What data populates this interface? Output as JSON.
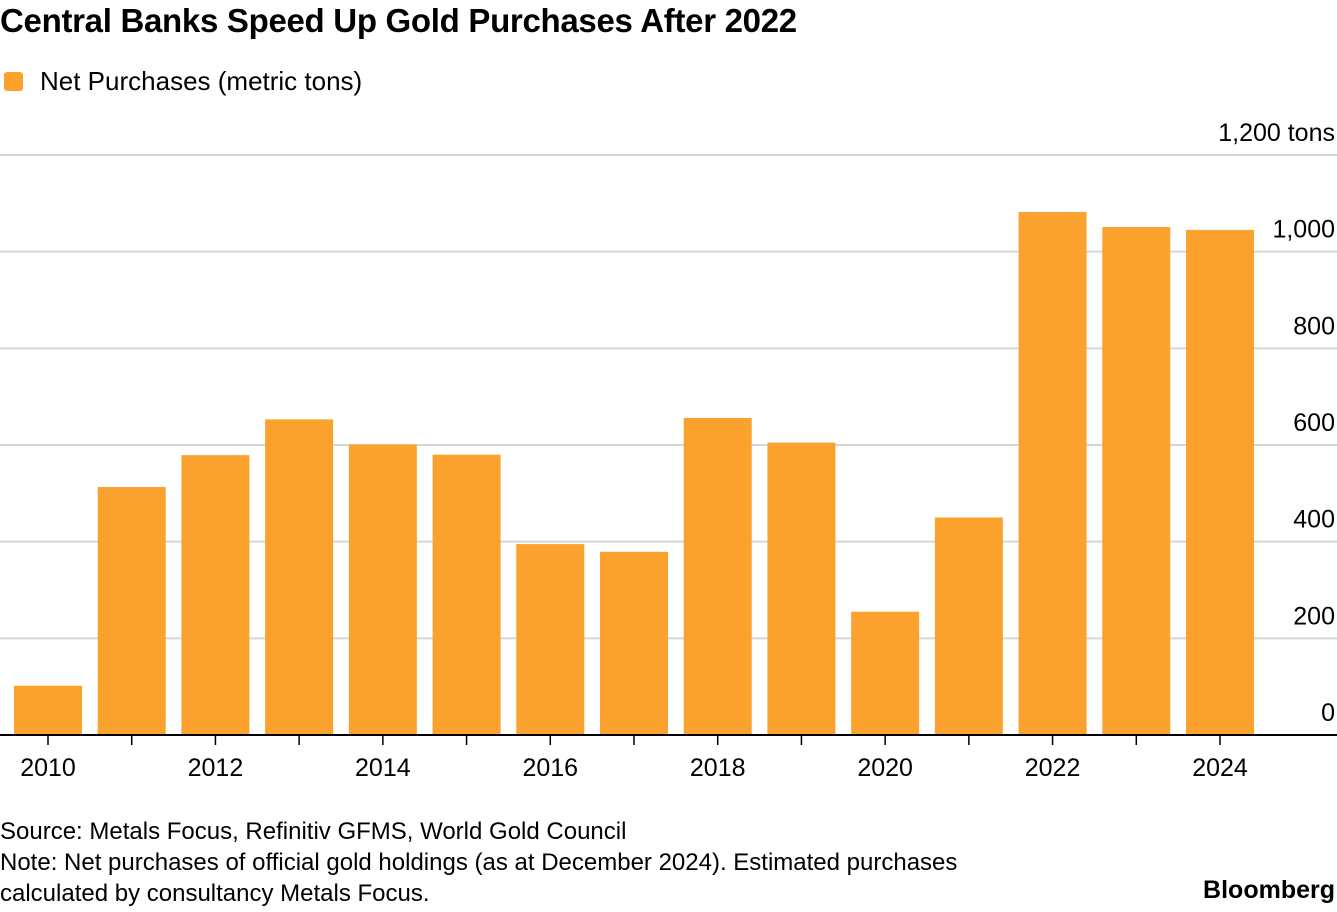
{
  "chart_data": {
    "type": "bar",
    "title": "Central Banks Speed Up Gold Purchases After 2022",
    "legend": [
      "Net Purchases (metric tons)"
    ],
    "categories": [
      "2010",
      "2011",
      "2012",
      "2013",
      "2014",
      "2015",
      "2016",
      "2017",
      "2018",
      "2019",
      "2020",
      "2021",
      "2022",
      "2023",
      "2024"
    ],
    "series": [
      {
        "name": "Net Purchases (metric tons)",
        "values": [
          102,
          513,
          579,
          653,
          601,
          580,
          395,
          379,
          656,
          605,
          255,
          450,
          1082,
          1051,
          1045
        ]
      }
    ],
    "x_tick_labels": [
      "2010",
      "2012",
      "2014",
      "2016",
      "2018",
      "2020",
      "2022",
      "2024"
    ],
    "y_tick_labels": [
      "0",
      "200",
      "400",
      "600",
      "800",
      "1,000",
      "1,200 tons"
    ],
    "ylim": [
      0,
      1200
    ],
    "y_ticks": [
      0,
      200,
      400,
      600,
      800,
      1000,
      1200
    ],
    "y_axis_side": "right",
    "grid": true,
    "xlabel": "",
    "ylabel": "tons"
  },
  "footer": {
    "source": "Source: Metals Focus, Refinitiv GFMS, World Gold Council",
    "note_line1": "Note: Net purchases of official gold holdings (as at December 2024). Estimated purchases",
    "note_line2": "calculated by consultancy Metals Focus.",
    "brand": "Bloomberg"
  },
  "colors": {
    "bar": "#FBA22E",
    "grid": "#d6d6d6",
    "axis": "#000000",
    "text": "#000000"
  }
}
